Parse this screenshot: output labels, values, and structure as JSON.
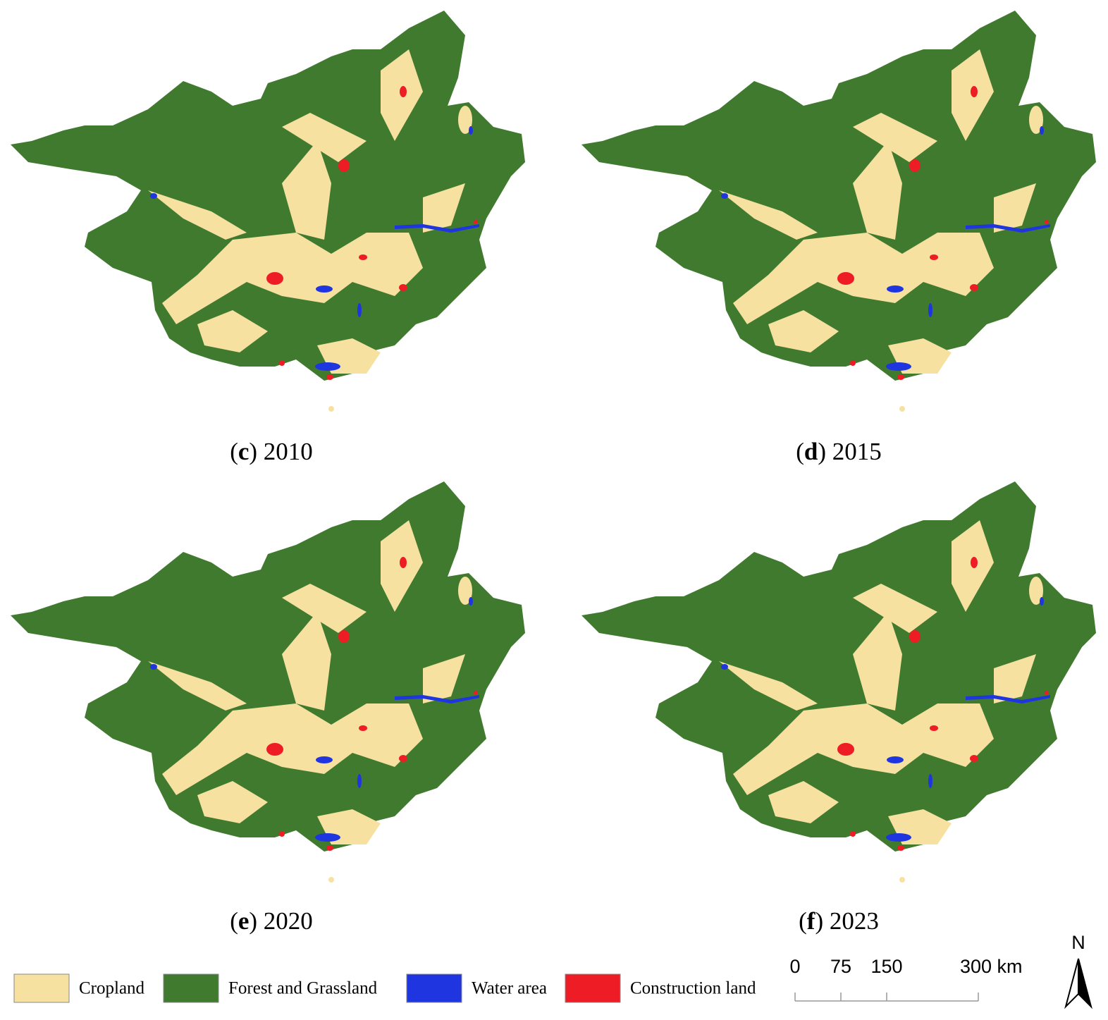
{
  "panels": [
    {
      "prefix": "(",
      "letter": "c",
      "suffix": ") 2010"
    },
    {
      "prefix": "(",
      "letter": "d",
      "suffix": ") 2015"
    },
    {
      "prefix": "(",
      "letter": "e",
      "suffix": ") 2020"
    },
    {
      "prefix": "(",
      "letter": "f",
      "suffix": ") 2023"
    }
  ],
  "legend": [
    {
      "name": "Cropland",
      "color": "#f7e1a0"
    },
    {
      "name": "Forest and Grassland",
      "color": "#3f7a2e"
    },
    {
      "name": "Water area",
      "color": "#1f35e0"
    },
    {
      "name": "Construction land",
      "color": "#ee1c25"
    }
  ],
  "scale_bar": {
    "ticks": [
      0,
      75,
      150,
      {
        "value": 300,
        "label": "300 km"
      }
    ]
  },
  "north_arrow": {
    "label": "N"
  }
}
